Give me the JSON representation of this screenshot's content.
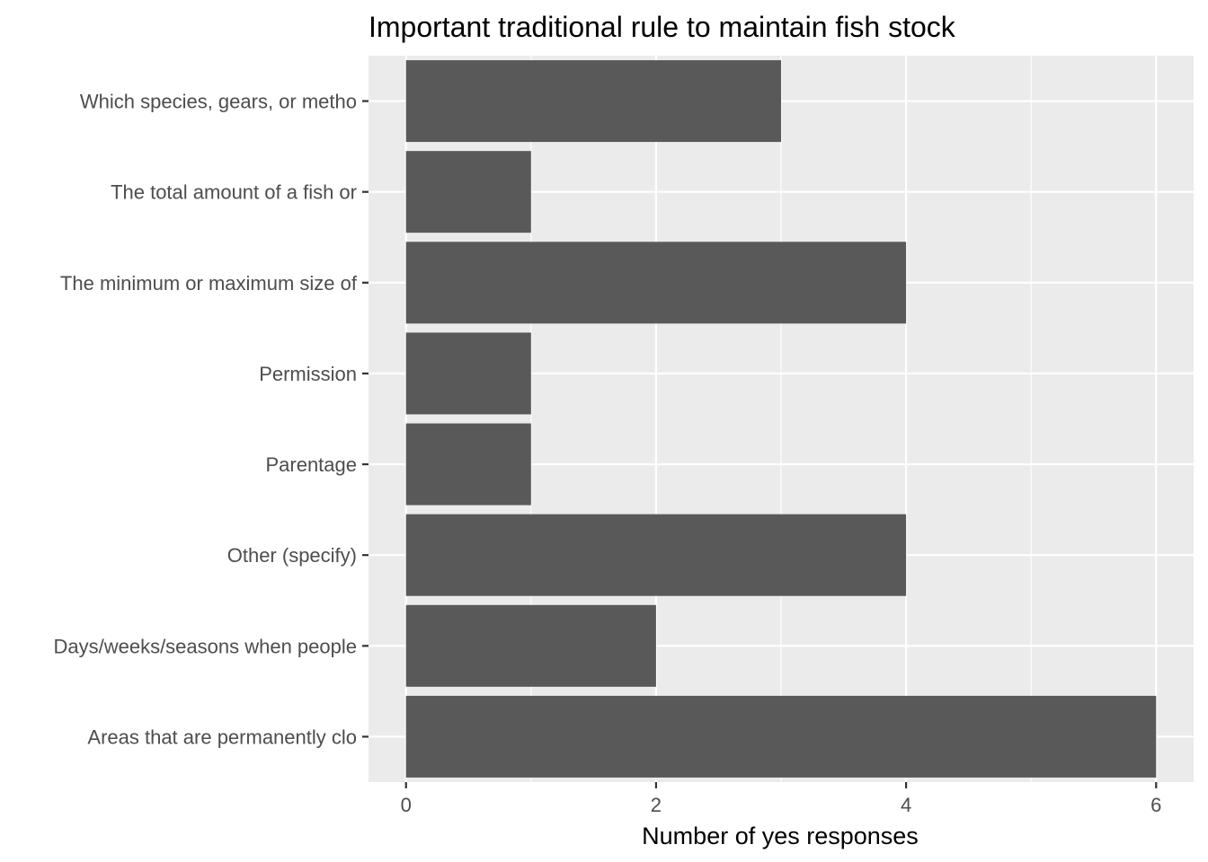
{
  "chart_data": {
    "type": "bar",
    "orientation": "horizontal",
    "title": "Important traditional rule to maintain fish stock",
    "xlabel": "Number of yes responses",
    "ylabel": "",
    "categories": [
      "Which species, gears, or metho",
      "The total amount of a fish or ",
      "The minimum or maximum size of",
      "Permission",
      "Parentage",
      "Other (specify)",
      "Days/weeks/seasons when people",
      "Areas that are permanently clo"
    ],
    "values": [
      3,
      1,
      4,
      1,
      1,
      4,
      2,
      6
    ],
    "xlim": [
      -0.3,
      6.3
    ],
    "xticks": [
      0,
      2,
      4,
      6
    ],
    "grid": true,
    "legend": "none",
    "colors": {
      "panel": "#ebebeb",
      "grid": "#ffffff",
      "bar": "#595959",
      "tick": "#333333",
      "tick_label": "#4d4d4d"
    }
  }
}
